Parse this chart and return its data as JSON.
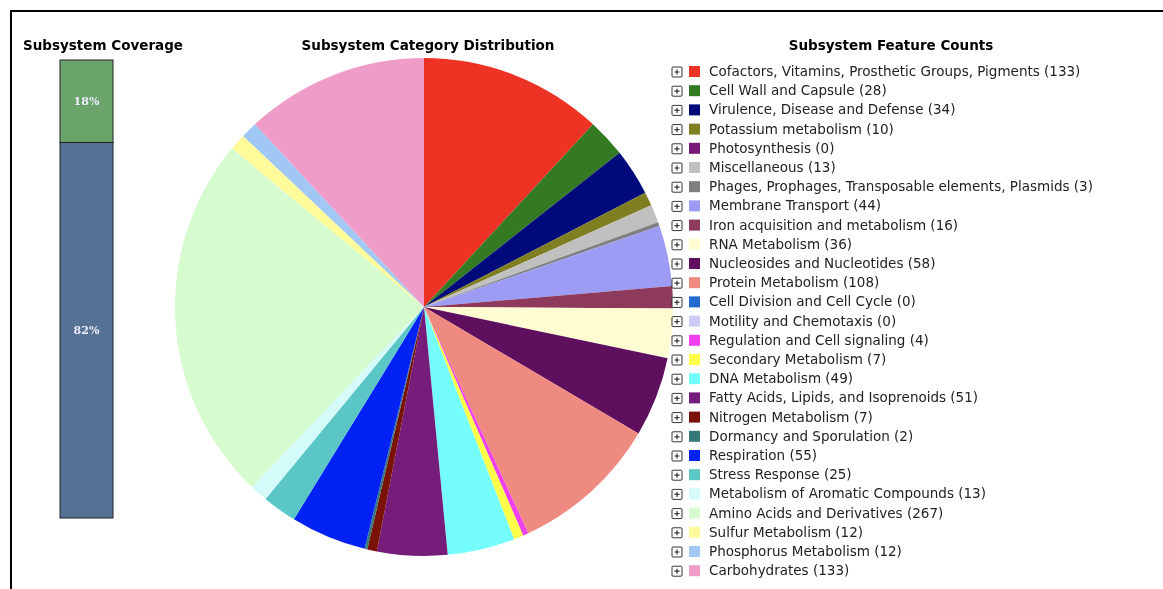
{
  "chart_data": [
    {
      "type": "bar",
      "title": "Subsystem Coverage",
      "categories": [
        null
      ],
      "stacked": true,
      "series": [
        {
          "color": "#557194",
          "values": [
            82
          ],
          "value_labels": [
            "82%"
          ]
        },
        {
          "color": "#6aa46a",
          "values": [
            18
          ],
          "value_labels": [
            "18%"
          ]
        }
      ]
    },
    {
      "type": "pie",
      "title": "Subsystem Category Distribution",
      "legend_title": "Subsystem Feature Counts",
      "legend": "right",
      "categories": [
        "Cofactors, Vitamins, Prosthetic Groups, Pigments",
        "Cell Wall and Capsule",
        "Virulence, Disease and Defense",
        "Potassium metabolism",
        "Photosynthesis",
        "Miscellaneous",
        "Phages, Prophages, Transposable elements, Plasmids",
        "Membrane Transport",
        "Iron acquisition and metabolism",
        "RNA Metabolism",
        "Nucleosides and Nucleotides",
        "Protein Metabolism",
        "Cell Division and Cell Cycle",
        "Motility and Chemotaxis",
        "Regulation and Cell signaling",
        "Secondary Metabolism",
        "DNA Metabolism",
        "Fatty Acids, Lipids, and Isoprenoids",
        "Nitrogen Metabolism",
        "Dormancy and Sporulation",
        "Respiration",
        "Stress Response",
        "Metabolism of Aromatic Compounds",
        "Amino Acids and Derivatives",
        "Sulfur Metabolism",
        "Phosphorus Metabolism",
        "Carbohydrates"
      ],
      "values": [
        133,
        28,
        34,
        10,
        0,
        13,
        3,
        44,
        16,
        36,
        58,
        108,
        0,
        0,
        4,
        7,
        49,
        51,
        7,
        2,
        55,
        25,
        13,
        267,
        12,
        12,
        133
      ],
      "colors": [
        "#ee3224",
        "#337a22",
        "#000a7a",
        "#7f7f22",
        "#7a187a",
        "#c0c0c0",
        "#7f7f7f",
        "#9c9cf5",
        "#8e3a5c",
        "#fffcd2",
        "#5e0f5e",
        "#ef8a80",
        "#236ad0",
        "#ccccf7",
        "#ee40ee",
        "#ffff4a",
        "#75fdfd",
        "#761c7a",
        "#7a1208",
        "#357878",
        "#0022f5",
        "#5ac6c6",
        "#d4fafa",
        "#d5fbcf",
        "#fffb9a",
        "#a1c8f5",
        "#f09cc8"
      ],
      "value_labels": [
        "(133)",
        "(28)",
        "(34)",
        "(10)",
        "(0)",
        "(13)",
        "(3)",
        "(44)",
        "(16)",
        "(36)",
        "(58)",
        "(108)",
        "(0)",
        "(0)",
        "(4)",
        "(7)",
        "(49)",
        "(51)",
        "(7)",
        "(2)",
        "(55)",
        "(25)",
        "(13)",
        "(267)",
        "(12)",
        "(12)",
        "(133)"
      ]
    }
  ]
}
